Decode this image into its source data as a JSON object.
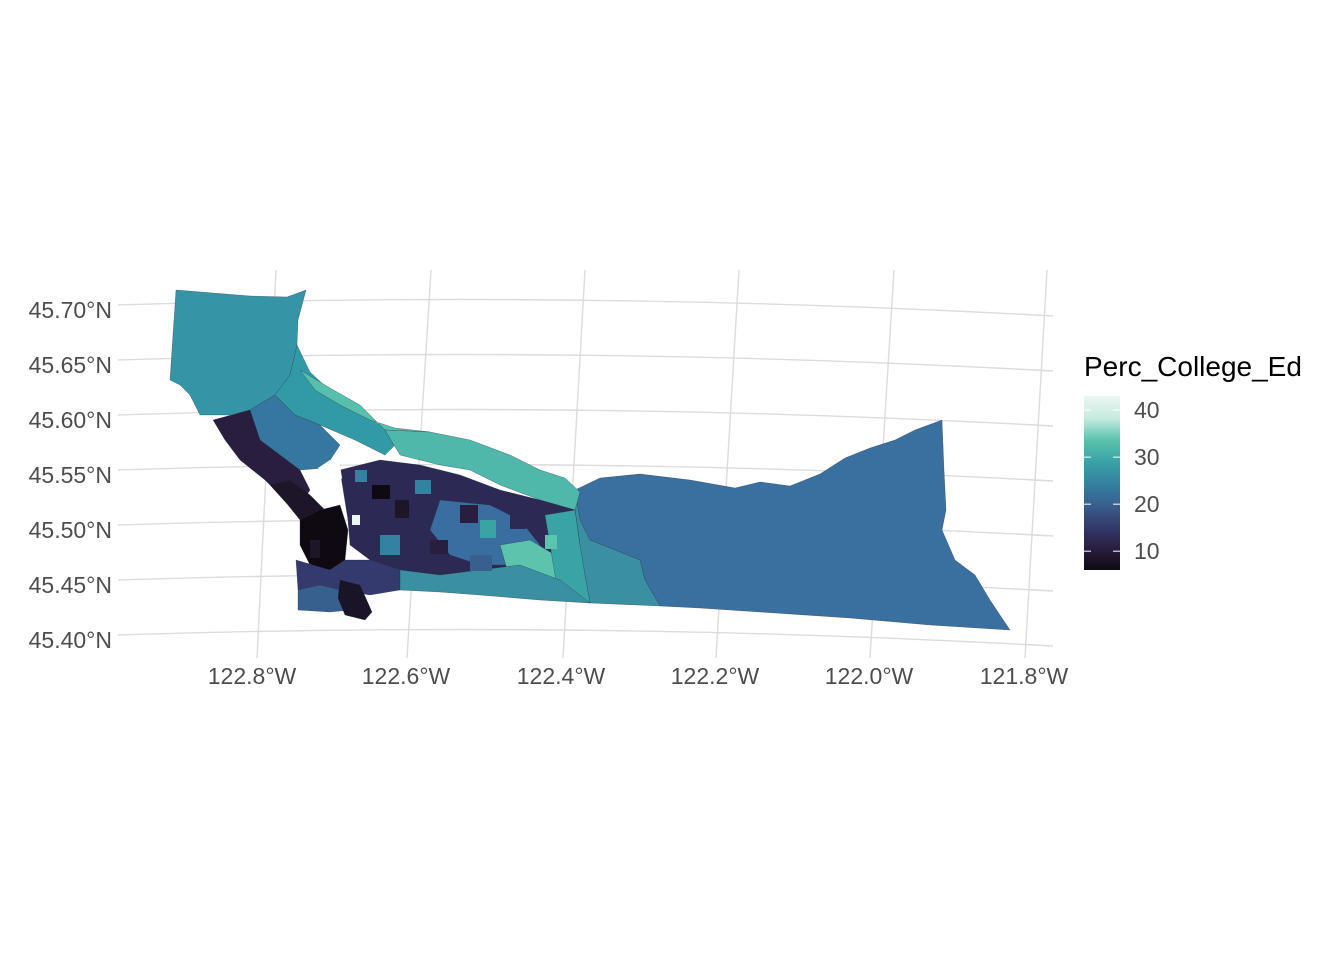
{
  "map": {
    "y_labels": [
      "45.70°N",
      "45.65°N",
      "45.60°N",
      "45.55°N",
      "45.50°N",
      "45.45°N",
      "45.40°N"
    ],
    "x_labels": [
      "122.8°W",
      "122.6°W",
      "122.4°W",
      "122.2°W",
      "122.0°W",
      "121.8°W"
    ]
  },
  "legend": {
    "title": "Perc_College_Ed",
    "ticks": [
      "40",
      "30",
      "20",
      "10"
    ],
    "tick_values": [
      40,
      30,
      20,
      10
    ],
    "range": [
      6,
      43
    ],
    "colors": [
      "#0f0a12",
      "#2a1e40",
      "#353a6e",
      "#38608f",
      "#3482a1",
      "#3aa3a6",
      "#5cc4ad",
      "#c7ecdf",
      "#e9f7f1"
    ]
  }
}
